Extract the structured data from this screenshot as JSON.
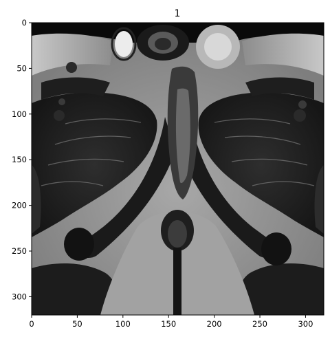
{
  "figure": {
    "title": "1",
    "image_description": "grayscale MRI cross-section",
    "x_axis": {
      "range": [
        0,
        320
      ],
      "ticks": [
        0,
        50,
        100,
        150,
        200,
        250,
        300
      ]
    },
    "y_axis": {
      "range": [
        0,
        320
      ],
      "inverted": true,
      "ticks": [
        0,
        50,
        100,
        150,
        200,
        250,
        300
      ]
    },
    "colors": {
      "background": "#ffffff",
      "axes": "#000000",
      "image_dark": "#101010",
      "muscle": "#262626",
      "fat": "#9a9a9a",
      "fluid": "#e8e8e8"
    }
  }
}
